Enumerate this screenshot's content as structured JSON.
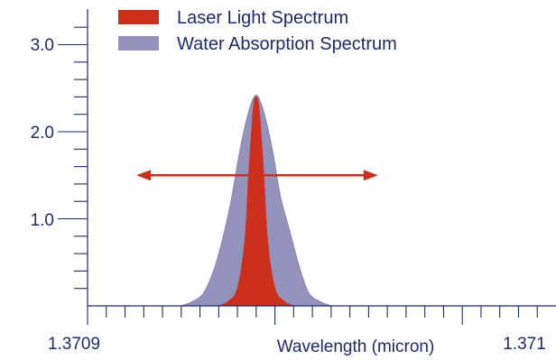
{
  "chart_data": {
    "type": "area",
    "title": "",
    "xlabel": "Wavelength (micron)",
    "ylabel": "",
    "xlim": [
      1.3709,
      1.37115
    ],
    "ylim": [
      0,
      3.0
    ],
    "x_tick_labels": [
      "1.3709",
      "1.371"
    ],
    "y_tick_labels": [
      "1.0",
      "2.0",
      "3.0"
    ],
    "legend_position": "top",
    "series": [
      {
        "name": "Laser Light Spectrum",
        "color": "#cc2f1c",
        "x": [
          1.37097,
          1.370975,
          1.37098,
          1.370984,
          1.370986,
          1.370988,
          1.370989,
          1.37099,
          1.370991,
          1.370992,
          1.370994,
          1.370996,
          1.371,
          1.371005,
          1.37101
        ],
        "y": [
          0,
          0.05,
          0.2,
          0.75,
          1.5,
          2.15,
          2.35,
          2.4,
          2.35,
          2.15,
          1.5,
          0.75,
          0.2,
          0.05,
          0
        ]
      },
      {
        "name": "Water Absorption Spectrum",
        "color": "#9493bd",
        "x": [
          1.37095,
          1.370956,
          1.370962,
          1.370968,
          1.370973,
          1.370977,
          1.370981,
          1.370985,
          1.370988,
          1.37099,
          1.370992,
          1.370995,
          1.370999,
          1.371003,
          1.371008,
          1.371013,
          1.371018,
          1.371024,
          1.37103
        ],
        "y": [
          0,
          0.05,
          0.15,
          0.45,
          0.85,
          1.25,
          1.75,
          2.15,
          2.36,
          2.42,
          2.36,
          2.15,
          1.75,
          1.25,
          0.85,
          0.45,
          0.15,
          0.05,
          0
        ]
      }
    ],
    "annotations": [
      {
        "type": "double-arrow",
        "x1": 1.370926,
        "x2": 1.371055,
        "y": 1.5,
        "color": "#cc2f1c"
      }
    ],
    "grid": false
  }
}
